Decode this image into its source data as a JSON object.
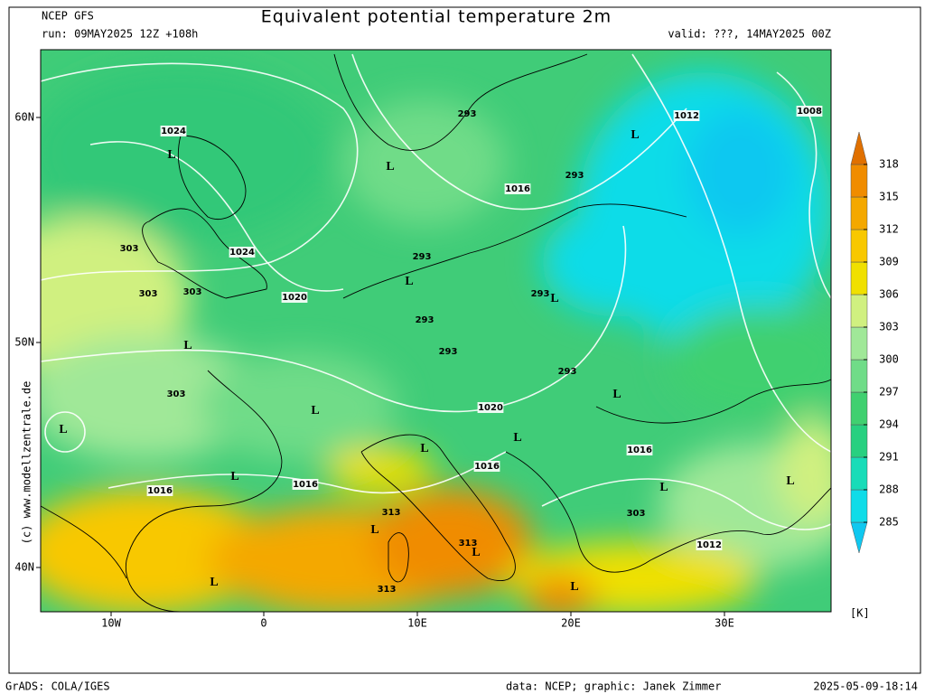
{
  "header": {
    "model": "NCEP GFS",
    "run": "run: 09MAY2025 12Z +108h",
    "title": "Equivalent potential temperature 2m",
    "valid": "valid: ???, 14MAY2025 00Z"
  },
  "credit": "(c) www.modellzentrale.de",
  "lat_labels": [
    "60N",
    "50N",
    "40N"
  ],
  "lon_labels": [
    "10W",
    "0",
    "10E",
    "20E",
    "30E"
  ],
  "map_labels": [
    "1024",
    "1024",
    "1020",
    "1016",
    "1012",
    "1008",
    "1020",
    "1016",
    "1016",
    "1016",
    "1016",
    "1012",
    "L",
    "L",
    "L",
    "L",
    "L",
    "L",
    "L",
    "L",
    "L",
    "L",
    "L",
    "L",
    "L",
    "L",
    "L",
    "L",
    "L",
    "L",
    "293",
    "293",
    "293",
    "293",
    "293",
    "293",
    "293",
    "303",
    "303",
    "303",
    "303",
    "303",
    "313",
    "313",
    "313"
  ],
  "colorbar": {
    "unit": "[K]",
    "levels": [
      285,
      288,
      291,
      294,
      297,
      300,
      303,
      306,
      309,
      312,
      315,
      318
    ],
    "colors": [
      "#10c8f0",
      "#10dce8",
      "#18dcb8",
      "#28d080",
      "#40d070",
      "#70dc88",
      "#a0e898",
      "#d0f080",
      "#f0e000",
      "#f8c800",
      "#f4a800",
      "#f08c00",
      "#e07000"
    ]
  },
  "footer": {
    "left": "GrADS: COLA/IGES",
    "center": "data: NCEP; graphic: Janek Zimmer",
    "right": "2025-05-09-18:14"
  }
}
